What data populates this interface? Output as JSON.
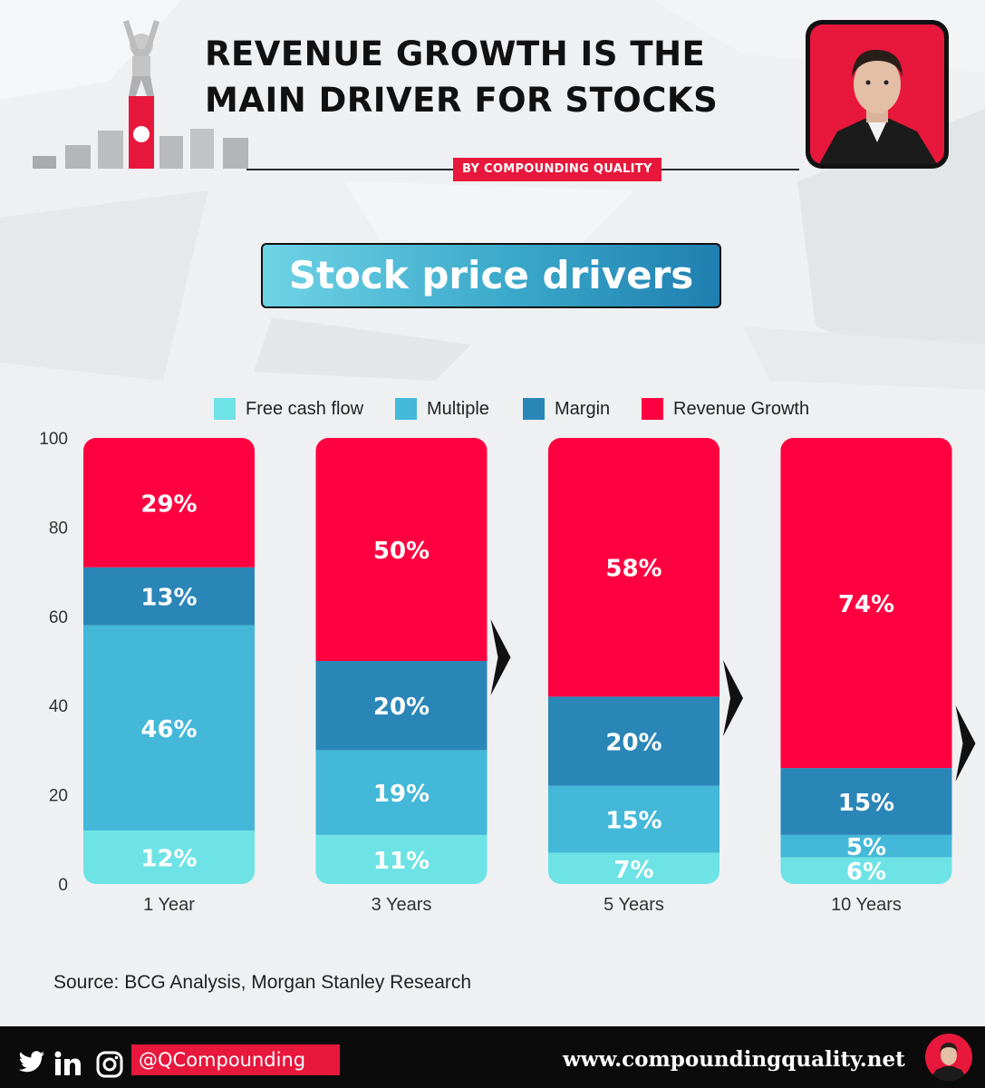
{
  "header": {
    "headline_line1": "REVENUE GROWTH IS THE",
    "headline_line2": "MAIN DRIVER FOR STOCKS",
    "byline": "BY COMPOUNDING QUALITY"
  },
  "colors": {
    "brand_red": "#e8173c",
    "free_cash_flow": "#6ee3e6",
    "multiple": "#43b8d8",
    "margin": "#2b86b8",
    "revenue_growth": "#ff0040"
  },
  "chart_data": {
    "type": "bar",
    "stacked": true,
    "title": "Stock price drivers",
    "categories": [
      "1 Year",
      "3 Years",
      "5 Years",
      "10 Years"
    ],
    "series": [
      {
        "name": "Free cash flow",
        "color": "#6ee3e6",
        "values": [
          12,
          11,
          7,
          6
        ],
        "labels": [
          "12%",
          "11%",
          "7%",
          "6%"
        ]
      },
      {
        "name": "Multiple",
        "color": "#43b8d8",
        "values": [
          46,
          19,
          15,
          5
        ],
        "labels": [
          "46%",
          "19%",
          "15%",
          "5%"
        ]
      },
      {
        "name": "Margin",
        "color": "#2b86b8",
        "values": [
          13,
          20,
          20,
          15
        ],
        "labels": [
          "13%",
          "20%",
          "20%",
          "15%"
        ]
      },
      {
        "name": "Revenue Growth",
        "color": "#ff0040",
        "values": [
          29,
          50,
          58,
          74
        ],
        "labels": [
          "29%",
          "50%",
          "58%",
          "74%"
        ]
      }
    ],
    "ylim": [
      0,
      100
    ],
    "yticks": [
      0,
      20,
      40,
      60,
      80,
      100
    ],
    "legend": "top-center",
    "grid": false
  },
  "source": "Source: BCG Analysis, Morgan Stanley Research",
  "footer": {
    "icons": [
      "twitter-icon",
      "linkedin-icon",
      "instagram-icon"
    ],
    "handle": "@QCompounding",
    "website": "www.compoundingquality.net"
  }
}
